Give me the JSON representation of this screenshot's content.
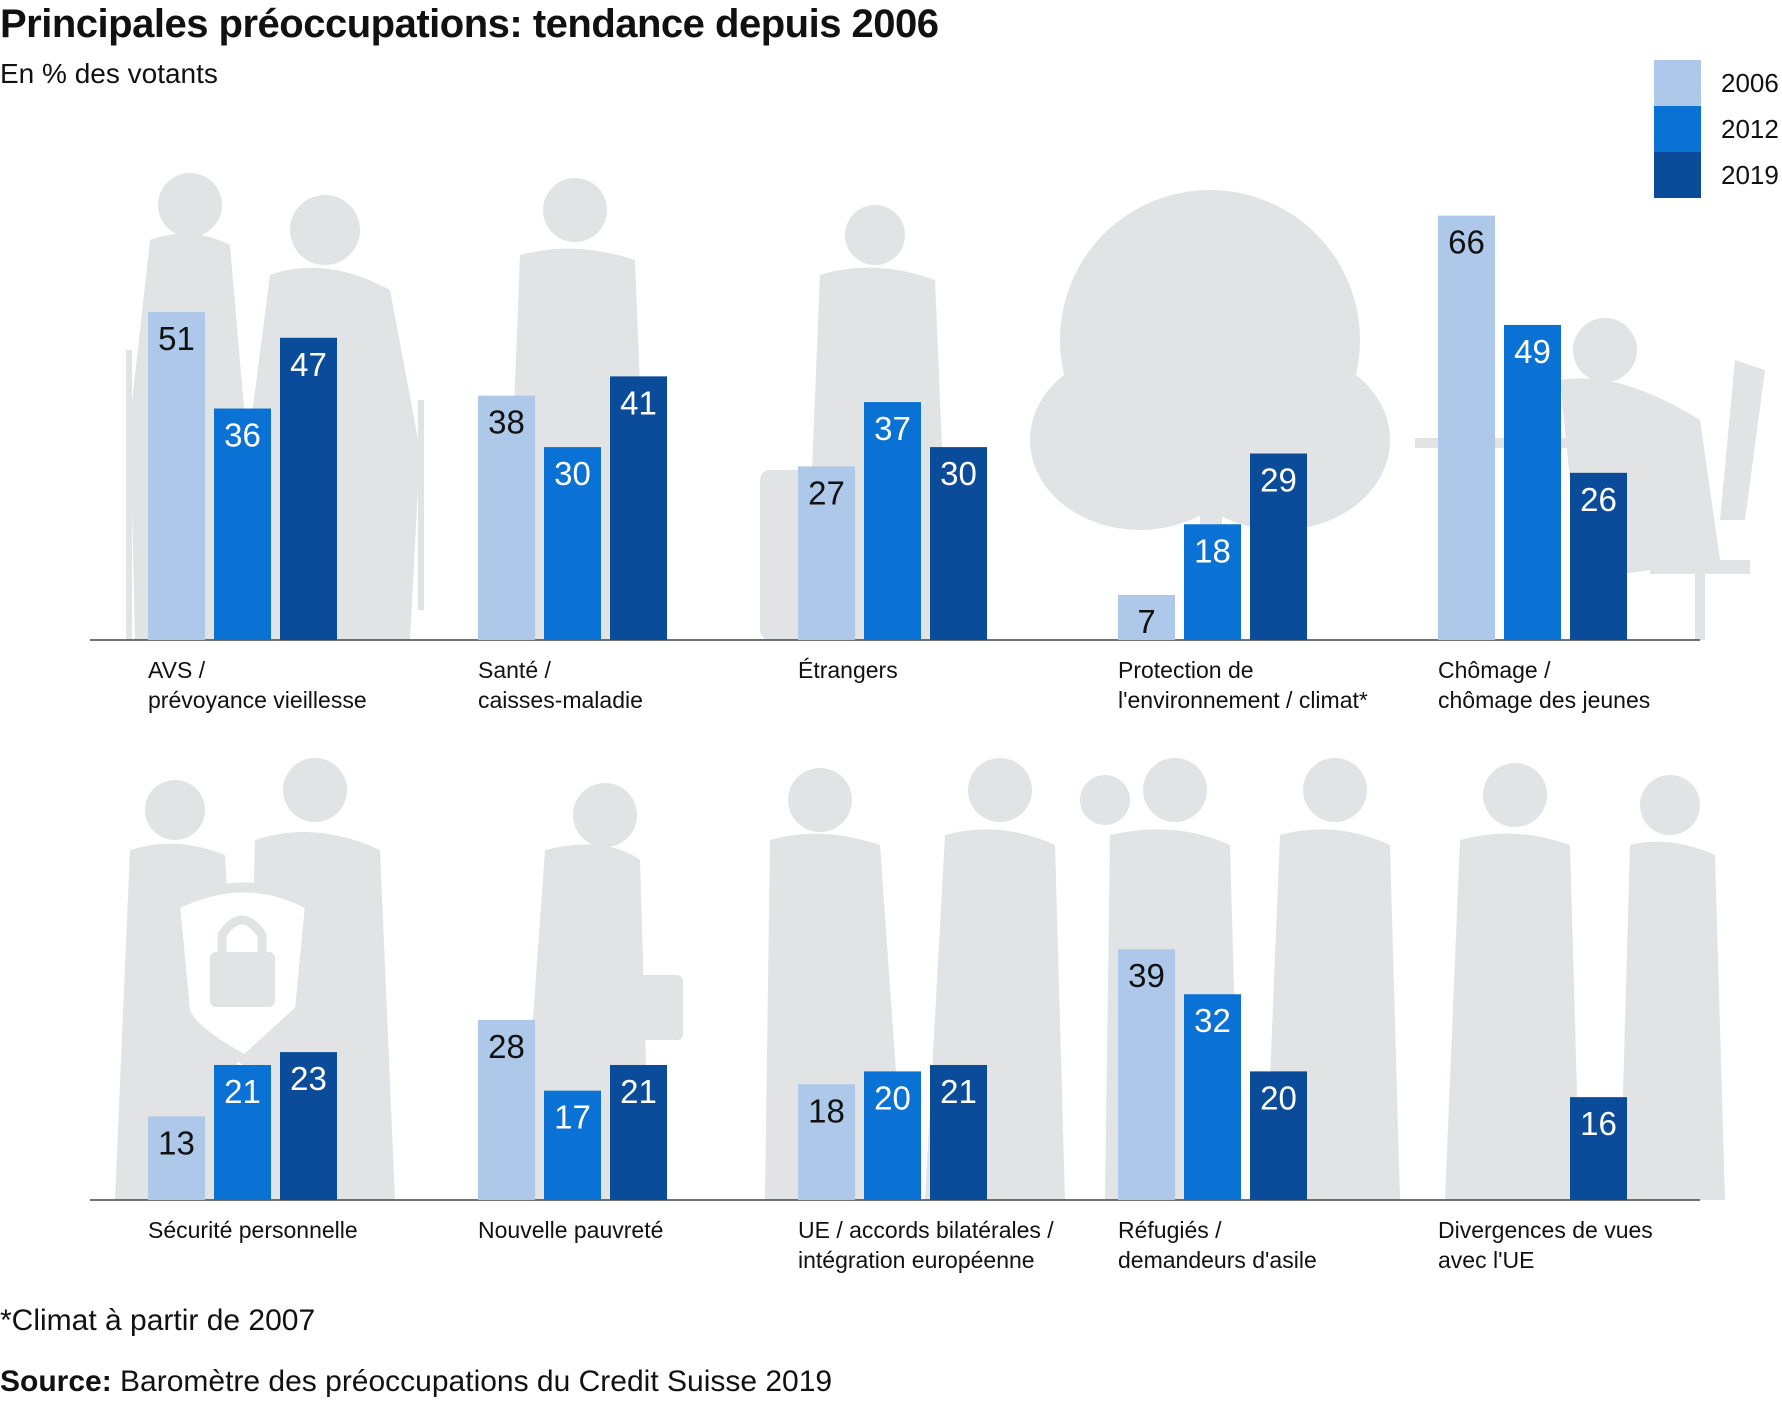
{
  "chart_data": {
    "type": "bar",
    "title": "Principales préoccupations: tendance depuis 2006",
    "subtitle": "En % des votants",
    "legend": {
      "placement": "top-right",
      "entries": [
        "2006",
        "2012",
        "2019"
      ]
    },
    "series_names": [
      "2006",
      "2012",
      "2019"
    ],
    "colors": [
      "#aec8e9",
      "#0a72d4",
      "#0a4c9a"
    ],
    "label_colors": [
      "#111111",
      "#ffffff",
      "#ffffff"
    ],
    "rows": [
      {
        "categories": [
          {
            "label": [
              "AVS /",
              "prévoyance vieillesse"
            ],
            "values": [
              51,
              36,
              47
            ]
          },
          {
            "label": [
              "Santé /",
              "caisses-maladie"
            ],
            "values": [
              38,
              30,
              41
            ]
          },
          {
            "label": [
              "Étrangers"
            ],
            "values": [
              27,
              37,
              30
            ]
          },
          {
            "label": [
              "Protection de",
              "l'environnement / climat*"
            ],
            "values": [
              7,
              18,
              29
            ]
          },
          {
            "label": [
              "Chômage /",
              "chômage des jeunes"
            ],
            "values": [
              66,
              49,
              26
            ]
          }
        ]
      },
      {
        "categories": [
          {
            "label": [
              "Sécurité personnelle"
            ],
            "values": [
              13,
              21,
              23
            ]
          },
          {
            "label": [
              "Nouvelle pauvreté"
            ],
            "values": [
              28,
              17,
              21
            ]
          },
          {
            "label": [
              "UE / accords bilatérales /",
              "intégration européenne"
            ],
            "values": [
              18,
              20,
              21
            ]
          },
          {
            "label": [
              "Réfugiés /",
              "demandeurs d'asile"
            ],
            "values": [
              39,
              32,
              20
            ]
          },
          {
            "label": [
              "Divergences de vues",
              "avec l'UE"
            ],
            "values": [
              null,
              null,
              16
            ]
          }
        ]
      }
    ]
  },
  "footnote": "*Climat à partir de 2007",
  "source_label": "Source:",
  "source_text": " Baromètre des préoccupations du Credit Suisse 2019"
}
